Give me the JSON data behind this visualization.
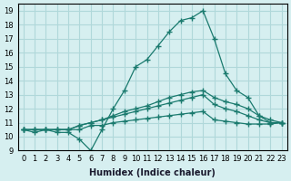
{
  "xlabel": "Humidex (Indice chaleur)",
  "ylabel": "",
  "bg_color": "#d6eff0",
  "grid_color": "#b0d8da",
  "line_color": "#1a7a6e",
  "xlim": [
    -0.5,
    23.5
  ],
  "ylim": [
    9,
    19.5
  ],
  "xticks": [
    0,
    1,
    2,
    3,
    4,
    5,
    6,
    7,
    8,
    9,
    10,
    11,
    12,
    13,
    14,
    15,
    16,
    17,
    18,
    19,
    20,
    21,
    22,
    23
  ],
  "yticks": [
    9,
    10,
    11,
    12,
    13,
    14,
    15,
    16,
    17,
    18,
    19
  ],
  "main_x": [
    0,
    1,
    2,
    3,
    4,
    5,
    6,
    7,
    8,
    9,
    10,
    11,
    12,
    13,
    14,
    15,
    16,
    17,
    18,
    19,
    20,
    21,
    22,
    23
  ],
  "main_y": [
    10.5,
    10.3,
    10.5,
    10.3,
    10.3,
    9.8,
    9.0,
    10.5,
    12.0,
    13.3,
    15.0,
    15.5,
    16.5,
    17.5,
    18.3,
    18.5,
    19.0,
    17.0,
    14.5,
    13.3,
    12.8,
    11.5,
    11.0,
    11.0
  ],
  "upper_x": [
    0,
    1,
    2,
    3,
    4,
    5,
    6,
    7,
    8,
    9,
    10,
    11,
    12,
    13,
    14,
    15,
    16,
    17,
    18,
    19,
    20,
    21,
    22,
    23
  ],
  "upper_y": [
    10.5,
    10.5,
    10.5,
    10.5,
    10.5,
    10.8,
    11.0,
    11.2,
    11.5,
    11.8,
    12.0,
    12.2,
    12.5,
    12.8,
    13.0,
    13.2,
    13.3,
    12.8,
    12.5,
    12.3,
    12.0,
    11.5,
    11.2,
    11.0
  ],
  "mid_x": [
    0,
    1,
    2,
    3,
    4,
    5,
    6,
    7,
    8,
    9,
    10,
    11,
    12,
    13,
    14,
    15,
    16,
    17,
    18,
    19,
    20,
    21,
    22,
    23
  ],
  "mid_y": [
    10.5,
    10.5,
    10.5,
    10.5,
    10.5,
    10.8,
    11.0,
    11.2,
    11.4,
    11.6,
    11.8,
    12.0,
    12.2,
    12.4,
    12.6,
    12.8,
    13.0,
    12.3,
    12.0,
    11.8,
    11.5,
    11.2,
    11.0,
    11.0
  ],
  "low_x": [
    0,
    1,
    2,
    3,
    4,
    5,
    6,
    7,
    8,
    9,
    10,
    11,
    12,
    13,
    14,
    15,
    16,
    17,
    18,
    19,
    20,
    21,
    22,
    23
  ],
  "low_y": [
    10.5,
    10.5,
    10.5,
    10.5,
    10.5,
    10.5,
    10.8,
    10.8,
    11.0,
    11.1,
    11.2,
    11.3,
    11.4,
    11.5,
    11.6,
    11.7,
    11.8,
    11.2,
    11.1,
    11.0,
    10.9,
    10.9,
    10.9,
    11.0
  ]
}
